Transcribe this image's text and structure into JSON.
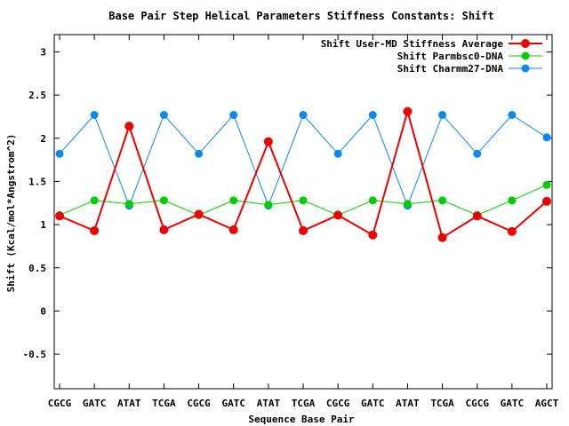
{
  "chart_data": {
    "type": "line",
    "title": "Base Pair Step Helical Parameters Stiffness Constants: Shift",
    "xlabel": "Sequence Base Pair",
    "ylabel": "Shift (Kcal/mol*Angstrom^2)",
    "categories": [
      "CGCG",
      "GATC",
      "ATAT",
      "TCGA",
      "CGCG",
      "GATC",
      "ATAT",
      "TCGA",
      "CGCG",
      "GATC",
      "ATAT",
      "TCGA",
      "CGCG",
      "GATC",
      "AGCT"
    ],
    "ylim": [
      -0.9,
      3.2
    ],
    "yticks": [
      {
        "value": -0.5,
        "label": "-0.5"
      },
      {
        "value": 0,
        "label": "0"
      },
      {
        "value": 0.5,
        "label": "0.5"
      },
      {
        "value": 1,
        "label": "1"
      },
      {
        "value": 1.5,
        "label": "1.5"
      },
      {
        "value": 2,
        "label": "2"
      },
      {
        "value": 2.5,
        "label": "2.5"
      },
      {
        "value": 3,
        "label": "3"
      }
    ],
    "grid": false,
    "legend_position": "top-right",
    "series": [
      {
        "name": "Shift User-MD Stiffness Average",
        "color": "#ee0000",
        "values": [
          1.1,
          0.93,
          2.14,
          0.94,
          1.12,
          0.94,
          1.96,
          0.93,
          1.11,
          0.88,
          2.31,
          0.85,
          1.1,
          0.92,
          1.27
        ]
      },
      {
        "name": "Shift Parmbsc0-DNA",
        "color": "#00cc00",
        "values": [
          1.11,
          1.28,
          1.24,
          1.28,
          1.11,
          1.28,
          1.23,
          1.28,
          1.11,
          1.28,
          1.24,
          1.28,
          1.11,
          1.28,
          1.46
        ]
      },
      {
        "name": "Shift Charmm27-DNA",
        "color": "#0a8af0",
        "values": [
          1.82,
          2.27,
          1.22,
          2.27,
          1.82,
          2.27,
          1.22,
          2.27,
          1.82,
          2.27,
          1.22,
          2.27,
          1.82,
          2.27,
          2.01
        ]
      }
    ]
  }
}
